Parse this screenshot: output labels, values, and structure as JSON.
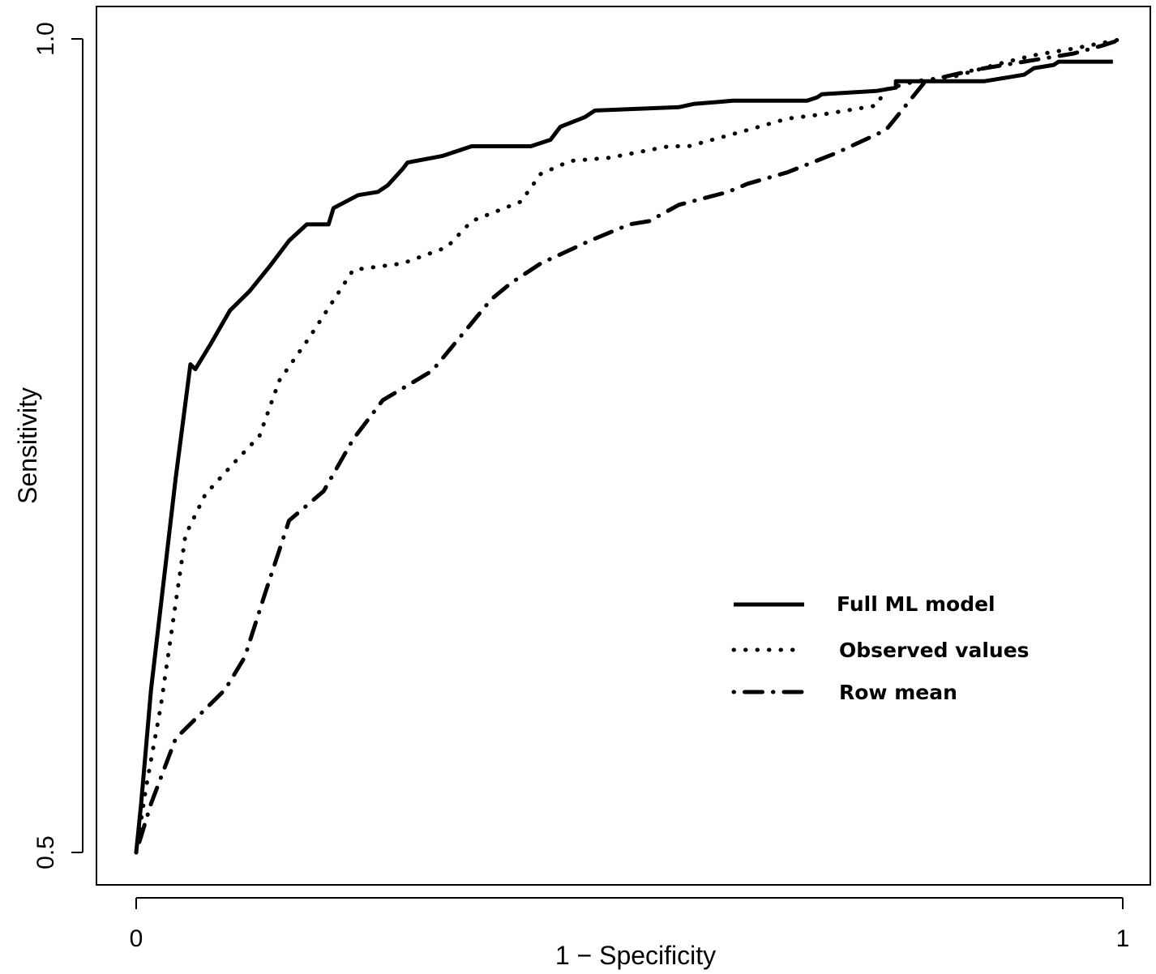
{
  "chart_data": {
    "type": "line",
    "title": "",
    "xlabel": "1 − Specificity",
    "ylabel": "Sensitivity",
    "xlim": [
      0,
      1
    ],
    "ylim": [
      0.5,
      1.0
    ],
    "x_ticks": [
      {
        "value": 0,
        "label": "0"
      },
      {
        "value": 1,
        "label": "1"
      }
    ],
    "y_ticks": [
      {
        "value": 0.5,
        "label": "0.5"
      },
      {
        "value": 1.0,
        "label": "1.0"
      }
    ],
    "grid": false,
    "legend_position": "center-right",
    "colors": {
      "line": "#000000",
      "axis": "#000000",
      "background": "#ffffff"
    },
    "series": [
      {
        "name": "Full ML model",
        "style": "solid",
        "points": [
          [
            0.0,
            0.5
          ],
          [
            0.005,
            0.53
          ],
          [
            0.015,
            0.6
          ],
          [
            0.04,
            0.73
          ],
          [
            0.055,
            0.8
          ],
          [
            0.06,
            0.797
          ],
          [
            0.075,
            0.812
          ],
          [
            0.095,
            0.833
          ],
          [
            0.115,
            0.845
          ],
          [
            0.135,
            0.86
          ],
          [
            0.155,
            0.876
          ],
          [
            0.173,
            0.886
          ],
          [
            0.195,
            0.886
          ],
          [
            0.2,
            0.896
          ],
          [
            0.225,
            0.904
          ],
          [
            0.245,
            0.906
          ],
          [
            0.255,
            0.91
          ],
          [
            0.27,
            0.92
          ],
          [
            0.275,
            0.924
          ],
          [
            0.31,
            0.928
          ],
          [
            0.34,
            0.934
          ],
          [
            0.4,
            0.934
          ],
          [
            0.42,
            0.938
          ],
          [
            0.43,
            0.946
          ],
          [
            0.455,
            0.952
          ],
          [
            0.465,
            0.956
          ],
          [
            0.55,
            0.958
          ],
          [
            0.565,
            0.96
          ],
          [
            0.605,
            0.962
          ],
          [
            0.68,
            0.962
          ],
          [
            0.69,
            0.964
          ],
          [
            0.695,
            0.966
          ],
          [
            0.75,
            0.968
          ],
          [
            0.77,
            0.97
          ],
          [
            0.77,
            0.974
          ],
          [
            0.8,
            0.974
          ],
          [
            0.86,
            0.974
          ],
          [
            0.88,
            0.976
          ],
          [
            0.9,
            0.978
          ],
          [
            0.91,
            0.982
          ],
          [
            0.93,
            0.984
          ],
          [
            0.935,
            0.986
          ],
          [
            0.95,
            0.986
          ],
          [
            0.99,
            0.986
          ]
        ]
      },
      {
        "name": "Observed values",
        "style": "dotted",
        "points": [
          [
            0.0,
            0.5
          ],
          [
            0.01,
            0.54
          ],
          [
            0.025,
            0.59
          ],
          [
            0.05,
            0.695
          ],
          [
            0.07,
            0.72
          ],
          [
            0.1,
            0.74
          ],
          [
            0.125,
            0.756
          ],
          [
            0.145,
            0.79
          ],
          [
            0.175,
            0.816
          ],
          [
            0.22,
            0.858
          ],
          [
            0.27,
            0.862
          ],
          [
            0.315,
            0.872
          ],
          [
            0.34,
            0.888
          ],
          [
            0.39,
            0.9
          ],
          [
            0.41,
            0.917
          ],
          [
            0.44,
            0.925
          ],
          [
            0.48,
            0.927
          ],
          [
            0.54,
            0.934
          ],
          [
            0.56,
            0.934
          ],
          [
            0.59,
            0.939
          ],
          [
            0.62,
            0.944
          ],
          [
            0.66,
            0.951
          ],
          [
            0.7,
            0.954
          ],
          [
            0.75,
            0.959
          ],
          [
            0.76,
            0.969
          ],
          [
            0.79,
            0.974
          ],
          [
            0.83,
            0.977
          ],
          [
            0.87,
            0.984
          ],
          [
            0.91,
            0.99
          ],
          [
            0.95,
            0.994
          ],
          [
            1.0,
            1.0
          ]
        ]
      },
      {
        "name": "Row mean",
        "style": "dotdash",
        "points": [
          [
            0.0,
            0.5
          ],
          [
            0.015,
            0.53
          ],
          [
            0.04,
            0.57
          ],
          [
            0.09,
            0.6
          ],
          [
            0.11,
            0.62
          ],
          [
            0.13,
            0.658
          ],
          [
            0.155,
            0.704
          ],
          [
            0.19,
            0.722
          ],
          [
            0.22,
            0.754
          ],
          [
            0.25,
            0.778
          ],
          [
            0.3,
            0.796
          ],
          [
            0.33,
            0.818
          ],
          [
            0.36,
            0.84
          ],
          [
            0.38,
            0.85
          ],
          [
            0.41,
            0.862
          ],
          [
            0.46,
            0.876
          ],
          [
            0.5,
            0.886
          ],
          [
            0.52,
            0.888
          ],
          [
            0.55,
            0.898
          ],
          [
            0.6,
            0.906
          ],
          [
            0.62,
            0.911
          ],
          [
            0.66,
            0.918
          ],
          [
            0.71,
            0.93
          ],
          [
            0.76,
            0.944
          ],
          [
            0.8,
            0.974
          ],
          [
            0.85,
            0.981
          ],
          [
            0.9,
            0.986
          ],
          [
            0.95,
            0.991
          ],
          [
            0.98,
            0.996
          ],
          [
            1.0,
            1.0
          ]
        ]
      }
    ]
  }
}
